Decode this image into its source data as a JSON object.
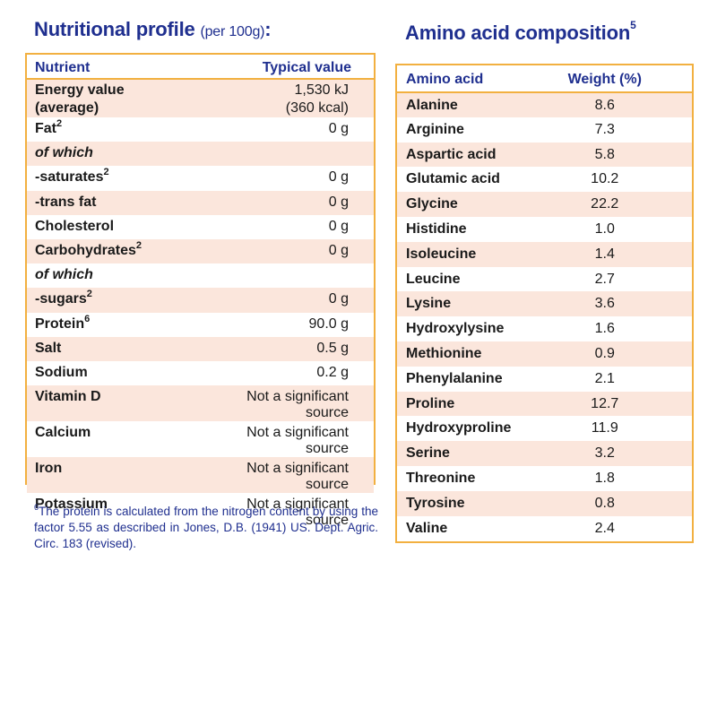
{
  "nutrition": {
    "title": "Nutritional profile",
    "title_sub": "(per 100g)",
    "title_colon": ":",
    "headers": {
      "nutrient": "Nutrient",
      "value": "Typical value"
    },
    "rows": [
      {
        "name": "Energy value",
        "name2": "(average)",
        "value": "1,530 kJ",
        "value2": "(360 kcal)",
        "sup": "",
        "italic": false,
        "shade": true
      },
      {
        "name": "Fat",
        "sup": "2",
        "value": "0 g",
        "italic": false,
        "shade": false
      },
      {
        "name": "of which",
        "sup": "",
        "value": "",
        "italic": true,
        "shade": true
      },
      {
        "name": "-saturates",
        "sup": "2",
        "value": "0 g",
        "italic": false,
        "shade": false
      },
      {
        "name": "-trans fat",
        "sup": "",
        "value": "0 g",
        "italic": false,
        "shade": true
      },
      {
        "name": "Cholesterol",
        "sup": "",
        "value": "0 g",
        "italic": false,
        "shade": false
      },
      {
        "name": "Carbohydrates",
        "sup": "2",
        "value": "0 g",
        "italic": false,
        "shade": true
      },
      {
        "name": "of which",
        "sup": "",
        "value": "",
        "italic": true,
        "shade": false
      },
      {
        "name": "-sugars",
        "sup": "2",
        "value": "0 g",
        "italic": false,
        "shade": true
      },
      {
        "name": "Protein",
        "sup": "6",
        "value": "90.0 g",
        "italic": false,
        "shade": false
      },
      {
        "name": "Salt",
        "sup": "",
        "value": "0.5 g",
        "italic": false,
        "shade": true
      },
      {
        "name": "Sodium",
        "sup": "",
        "value": "0.2 g",
        "italic": false,
        "shade": false
      },
      {
        "name": "Vitamin D",
        "sup": "",
        "value": "Not a significant source",
        "italic": false,
        "shade": true
      },
      {
        "name": "Calcium",
        "sup": "",
        "value": "Not a significant source",
        "italic": false,
        "shade": false
      },
      {
        "name": "Iron",
        "sup": "",
        "value": "Not a significant source",
        "italic": false,
        "shade": true
      },
      {
        "name": "Potassium",
        "sup": "",
        "value": "Not a significant source",
        "italic": false,
        "shade": false
      }
    ],
    "footnote_sup": "6",
    "footnote": "The protein is calculated from the nitrogen content by using the factor 5.55 as described in Jones, D.B. (1941) US. Dept. Agric. Circ. 183 (revised)."
  },
  "amino": {
    "title": "Amino acid composition",
    "title_sup": "5",
    "headers": {
      "name": "Amino acid",
      "value": "Weight (%)"
    },
    "rows": [
      {
        "name": "Alanine",
        "value": "8.6"
      },
      {
        "name": "Arginine",
        "value": "7.3"
      },
      {
        "name": "Aspartic acid",
        "value": "5.8"
      },
      {
        "name": "Glutamic acid",
        "value": "10.2"
      },
      {
        "name": "Glycine",
        "value": "22.2"
      },
      {
        "name": "Histidine",
        "value": "1.0"
      },
      {
        "name": "Isoleucine",
        "value": "1.4"
      },
      {
        "name": "Leucine",
        "value": "2.7"
      },
      {
        "name": "Lysine",
        "value": "3.6"
      },
      {
        "name": "Hydroxylysine",
        "value": "1.6"
      },
      {
        "name": "Methionine",
        "value": "0.9"
      },
      {
        "name": "Phenylalanine",
        "value": "2.1"
      },
      {
        "name": "Proline",
        "value": "12.7"
      },
      {
        "name": "Hydroxyproline",
        "value": "11.9"
      },
      {
        "name": "Serine",
        "value": "3.2"
      },
      {
        "name": "Threonine",
        "value": "1.8"
      },
      {
        "name": "Tyrosine",
        "value": "0.8"
      },
      {
        "name": "Valine",
        "value": "2.4"
      }
    ]
  },
  "colors": {
    "title_blue": "#1f2f8f",
    "border_orange": "#f2b040",
    "row_shade": "#fbe6dc"
  }
}
